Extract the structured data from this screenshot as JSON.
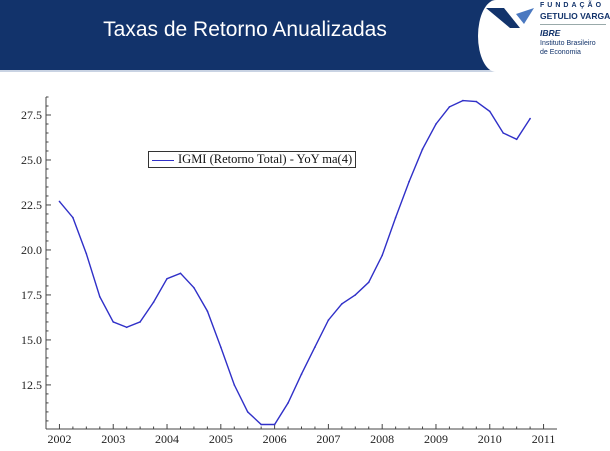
{
  "header": {
    "title": "Taxas de Retorno Anualizadas",
    "bg_color": "#12336b",
    "logo": {
      "line1": "FUNDAÇÃO",
      "line2": "GETULIO VARGAS",
      "line3": "IBRE",
      "line4": "Instituto Brasileiro",
      "line5": "de Economia"
    }
  },
  "chart_data": {
    "type": "line",
    "title": "",
    "xlabel": "",
    "ylabel": "",
    "xlim": [
      2001.75,
      2011.25
    ],
    "ylim": [
      10.05,
      28.5
    ],
    "grid": false,
    "legend_placement": "top-center",
    "x_ticks": [
      "2002",
      "2003",
      "2004",
      "2005",
      "2006",
      "2007",
      "2008",
      "2009",
      "2010",
      "2011"
    ],
    "y_ticks": [
      "12.5",
      "15.0",
      "17.5",
      "20.0",
      "22.5",
      "25.0",
      "27.5"
    ],
    "series": [
      {
        "name": "IGMI (Retorno Total) - YoY ma(4)",
        "color": "#3030c8",
        "x": [
          2002.0,
          2002.25,
          2002.5,
          2002.75,
          2003.0,
          2003.25,
          2003.5,
          2003.75,
          2004.0,
          2004.25,
          2004.5,
          2004.75,
          2005.0,
          2005.25,
          2005.5,
          2005.75,
          2006.0,
          2006.25,
          2006.5,
          2006.75,
          2007.0,
          2007.25,
          2007.5,
          2007.75,
          2008.0,
          2008.25,
          2008.5,
          2008.75,
          2009.0,
          2009.25,
          2009.5,
          2009.75,
          2010.0,
          2010.25,
          2010.5,
          2010.75
        ],
        "values": [
          22.7,
          21.8,
          19.8,
          17.4,
          16.0,
          15.7,
          16.0,
          17.1,
          18.4,
          18.7,
          17.9,
          16.6,
          14.6,
          12.5,
          11.0,
          10.3,
          10.3,
          11.5,
          13.1,
          14.6,
          16.1,
          17.0,
          17.5,
          18.2,
          19.7,
          21.8,
          23.8,
          25.6,
          27.0,
          27.95,
          28.3,
          28.25,
          27.7,
          26.5,
          26.15,
          27.3
        ]
      }
    ]
  }
}
